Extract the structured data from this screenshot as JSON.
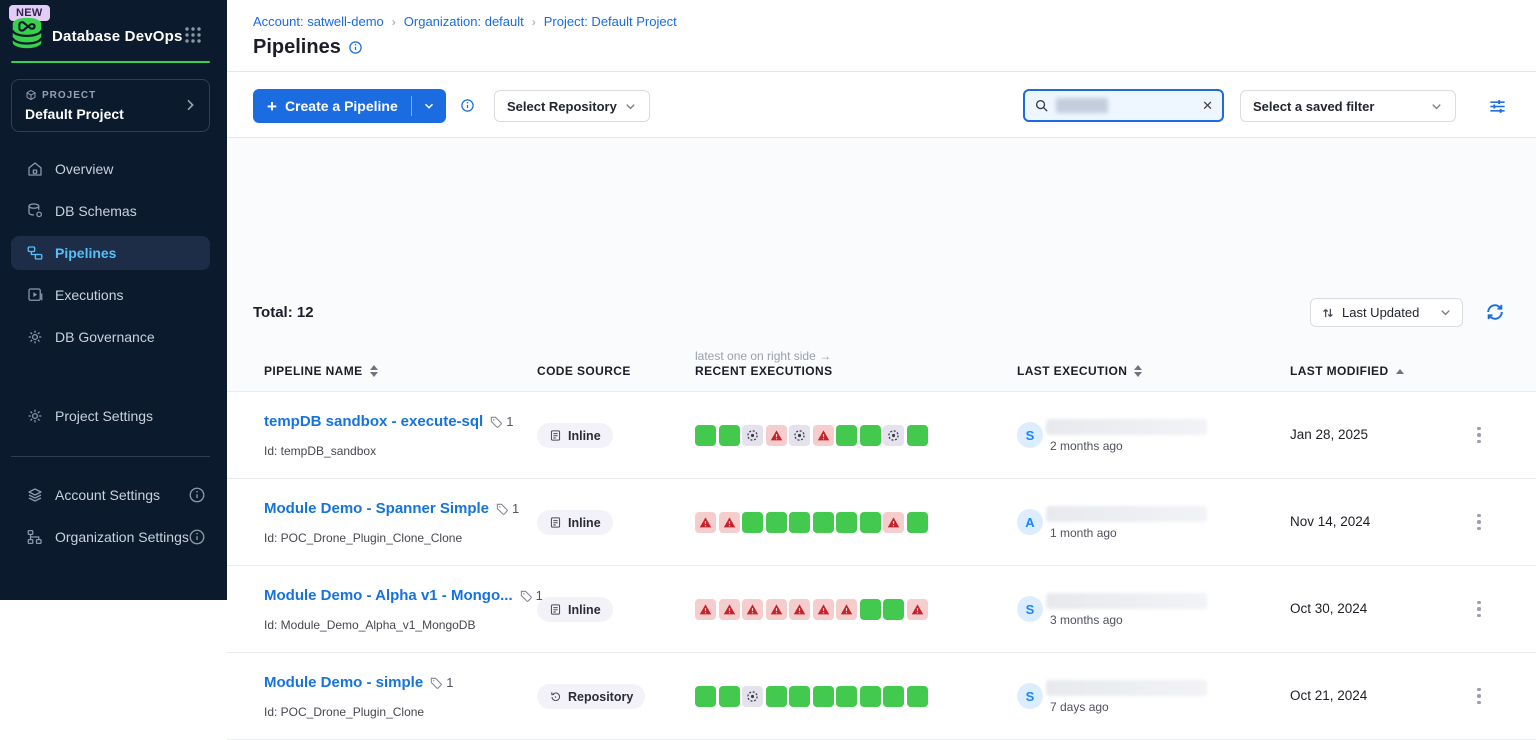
{
  "app": {
    "badge": "NEW",
    "title": "Database DevOps"
  },
  "sidebar": {
    "project_label": "PROJECT",
    "project_name": "Default Project",
    "nav": [
      {
        "label": "Overview"
      },
      {
        "label": "DB Schemas"
      },
      {
        "label": "Pipelines",
        "active": true
      },
      {
        "label": "Executions"
      },
      {
        "label": "DB Governance"
      }
    ],
    "secondary_nav": [
      {
        "label": "Project Settings"
      }
    ],
    "tertiary_nav": [
      {
        "label": "Account Settings"
      },
      {
        "label": "Organization Settings"
      }
    ]
  },
  "breadcrumb": {
    "account": "Account: satwell-demo",
    "organization": "Organization: default",
    "project": "Project: Default Project",
    "separator": "›"
  },
  "page": {
    "title": "Pipelines"
  },
  "toolbar": {
    "create_button": "Create a Pipeline",
    "repository_dropdown": "Select Repository",
    "saved_filter_dropdown": "Select a saved filter",
    "search_value": ""
  },
  "list_bar": {
    "total": "Total: 12",
    "sort": "Last Updated"
  },
  "table": {
    "headers": {
      "name": "PIPELINE NAME",
      "source": "CODE SOURCE",
      "executions": "RECENT EXECUTIONS",
      "executions_note": "latest one on right side →",
      "last_execution": "LAST EXECUTION",
      "last_modified": "LAST MODIFIED"
    },
    "rows": [
      {
        "name": "tempDB sandbox - execute-sql",
        "tag_count": "1",
        "id": "Id: tempDB_sandbox",
        "source": "Inline",
        "statuses": [
          "success",
          "success",
          "aborted",
          "failed",
          "aborted",
          "failed",
          "success",
          "success",
          "aborted",
          "success"
        ],
        "avatar": "S",
        "time_ago": "2 months ago",
        "modified": "Jan 28, 2025"
      },
      {
        "name": "Module Demo - Spanner Simple",
        "tag_count": "1",
        "id": "Id: POC_Drone_Plugin_Clone_Clone",
        "source": "Inline",
        "statuses": [
          "failed",
          "failed",
          "success",
          "success",
          "success",
          "success",
          "success",
          "success",
          "failed",
          "success"
        ],
        "avatar": "A",
        "time_ago": "1 month ago",
        "modified": "Nov 14, 2024"
      },
      {
        "name": "Module Demo - Alpha v1 - Mongo...",
        "tag_count": "1",
        "id": "Id: Module_Demo_Alpha_v1_MongoDB",
        "source": "Inline",
        "statuses": [
          "failed",
          "failed",
          "failed",
          "failed",
          "failed",
          "failed",
          "failed",
          "success",
          "success",
          "failed"
        ],
        "avatar": "S",
        "time_ago": "3 months ago",
        "modified": "Oct 30, 2024"
      },
      {
        "name": "Module Demo - simple",
        "tag_count": "1",
        "id": "Id: POC_Drone_Plugin_Clone",
        "source": "Repository",
        "statuses": [
          "success",
          "success",
          "aborted",
          "success",
          "success",
          "success",
          "success",
          "success",
          "success",
          "success"
        ],
        "avatar": "S",
        "time_ago": "7 days ago",
        "modified": "Oct 21, 2024"
      }
    ]
  },
  "colors": {
    "primary_blue": "#1a6ce0",
    "link_blue": "#1673dd",
    "success_green": "#42c94e",
    "failed_red": "#c3242b",
    "failed_bg": "#f6cdcd",
    "aborted_bg": "#e4e3ed",
    "sidebar_navy": "#0b1a2c",
    "logo_green": "#38d24a",
    "active_nav_blue": "#53c0fb"
  }
}
